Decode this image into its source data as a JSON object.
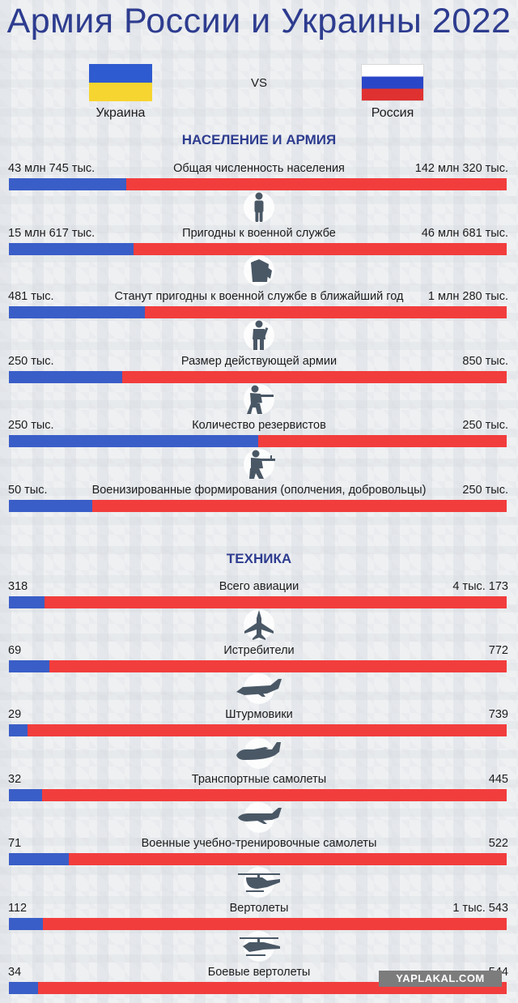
{
  "title": "Армия России и Украины 2022",
  "vs": "VS",
  "countries": {
    "left": "Украина",
    "right": "Россия"
  },
  "colors": {
    "ukraine": "#3a5ec7",
    "russia": "#f23d3d",
    "title": "#2d3c8f"
  },
  "watermark": "YAPLAKAL.COM",
  "chart_data": [
    {
      "type": "bar",
      "title": "НАСЕЛЕНИЕ И АРМИЯ",
      "rows": [
        {
          "name": "Общая численность населения",
          "ua_label": "43 млн 745 тыс.",
          "ru_label": "142 млн 320 тыс.",
          "ua": 43745000,
          "ru": 142320000,
          "icon": ""
        },
        {
          "name": "Пригодны к военной службе",
          "ua_label": "15 млн 617 тыс.",
          "ru_label": "46 млн 681 тыс.",
          "ua": 15617000,
          "ru": 46681000,
          "icon": "person-icon"
        },
        {
          "name": "Станут пригодны к военной службе в ближайший год",
          "ua_label": "481 тыс.",
          "ru_label": "1 млн 280 тыс.",
          "ua": 481000,
          "ru": 1280000,
          "icon": "uniform-icon"
        },
        {
          "name": "Размер действующей армии",
          "ua_label": "250 тыс.",
          "ru_label": "850 тыс.",
          "ua": 250000,
          "ru": 850000,
          "icon": "soldier-icon"
        },
        {
          "name": "Количество резервистов",
          "ua_label": "250 тыс.",
          "ru_label": "250 тыс.",
          "ua": 250000,
          "ru": 250000,
          "icon": "kneeling-soldier-icon"
        },
        {
          "name": "Военизированные формирования (ополчения, добровольцы)",
          "ua_label": "50 тыс.",
          "ru_label": "250 тыс.",
          "ua": 50000,
          "ru": 250000,
          "icon": "rifleman-icon"
        }
      ]
    },
    {
      "type": "bar",
      "title": "ТЕХНИКА",
      "rows": [
        {
          "name": "Всего авиации",
          "ua_label": "318",
          "ru_label": "4 тыс. 173",
          "ua": 318,
          "ru": 4173,
          "icon": ""
        },
        {
          "name": "Истребители",
          "ua_label": "69",
          "ru_label": "772",
          "ua": 69,
          "ru": 772,
          "icon": "fighter-jet-icon"
        },
        {
          "name": "Штурмовики",
          "ua_label": "29",
          "ru_label": "739",
          "ua": 29,
          "ru": 739,
          "icon": "attack-aircraft-icon"
        },
        {
          "name": "Транспортные самолеты",
          "ua_label": "32",
          "ru_label": "445",
          "ua": 32,
          "ru": 445,
          "icon": "transport-plane-icon"
        },
        {
          "name": "Военные учебно-тренировочные самолеты",
          "ua_label": "71",
          "ru_label": "522",
          "ua": 71,
          "ru": 522,
          "icon": "trainer-plane-icon"
        },
        {
          "name": "Вертолеты",
          "ua_label": "112",
          "ru_label": "1 тыс. 543",
          "ua": 112,
          "ru": 1543,
          "icon": "helicopter-icon"
        },
        {
          "name": "Боевые вертолеты",
          "ua_label": "34",
          "ru_label": "544",
          "ua": 34,
          "ru": 544,
          "icon": "attack-helicopter-icon"
        }
      ]
    }
  ]
}
